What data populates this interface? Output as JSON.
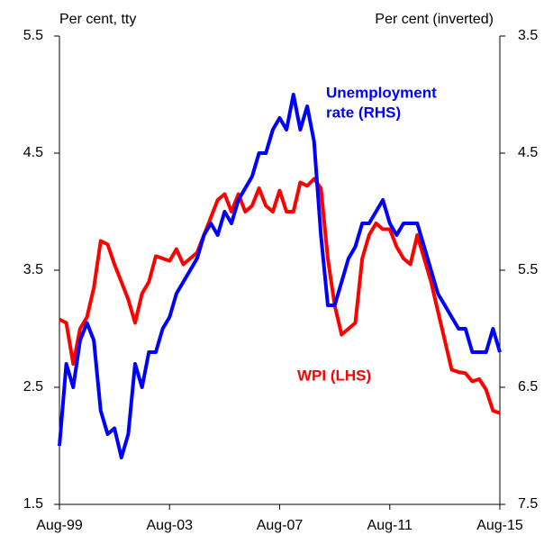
{
  "chart_data": {
    "type": "line",
    "y_label": "Per cent, tty",
    "y2_label": "Per cent (inverted)",
    "x": [
      "Aug-99",
      "Nov-99",
      "Feb-00",
      "May-00",
      "Aug-00",
      "Nov-00",
      "Feb-01",
      "May-01",
      "Aug-01",
      "Nov-01",
      "Feb-02",
      "May-02",
      "Aug-02",
      "Nov-02",
      "Feb-03",
      "May-03",
      "Aug-03",
      "Nov-03",
      "Feb-04",
      "May-04",
      "Aug-04",
      "Nov-04",
      "Feb-05",
      "May-05",
      "Aug-05",
      "Nov-05",
      "Feb-06",
      "May-06",
      "Aug-06",
      "Nov-06",
      "Feb-07",
      "May-07",
      "Aug-07",
      "Nov-07",
      "Feb-08",
      "May-08",
      "Aug-08",
      "Nov-08",
      "Feb-09",
      "May-09",
      "Aug-09",
      "Nov-09",
      "Feb-10",
      "May-10",
      "Aug-10",
      "Nov-10",
      "Feb-11",
      "May-11",
      "Aug-11",
      "Nov-11",
      "Feb-12",
      "May-12",
      "Aug-12",
      "Nov-12",
      "Feb-13",
      "May-13",
      "Aug-13",
      "Nov-13",
      "Feb-14",
      "May-14",
      "Aug-14",
      "Nov-14",
      "Feb-15",
      "May-15",
      "Aug-15"
    ],
    "xticks": [
      "Aug-99",
      "Aug-03",
      "Aug-07",
      "Aug-11",
      "Aug-15"
    ],
    "ylim": [
      1.5,
      5.5
    ],
    "yticks": [
      1.5,
      2.5,
      3.5,
      4.5,
      5.5
    ],
    "y2lim": [
      7.5,
      3.5
    ],
    "y2ticks": [
      3.5,
      4.5,
      5.5,
      6.5,
      7.5
    ],
    "annotations": [
      {
        "lines": [
          "Unemployment",
          "rate (RHS)"
        ],
        "color": "#0000ff"
      },
      {
        "lines": [
          "WPI (LHS)"
        ],
        "color": "#ff0000"
      }
    ],
    "series": [
      {
        "name": "WPI (LHS)",
        "color": "#ff0000",
        "axis": "y",
        "values": [
          3.08,
          3.05,
          2.7,
          3.0,
          3.1,
          3.35,
          3.75,
          3.72,
          3.55,
          3.4,
          3.25,
          3.05,
          3.3,
          3.4,
          3.62,
          3.6,
          3.58,
          3.68,
          3.55,
          3.6,
          3.65,
          3.8,
          3.95,
          4.1,
          4.15,
          4.0,
          4.15,
          4.0,
          4.05,
          4.2,
          4.05,
          4.0,
          4.18,
          4.0,
          4.0,
          4.25,
          4.22,
          4.28,
          4.2,
          3.6,
          3.2,
          2.95,
          3.0,
          3.05,
          3.6,
          3.8,
          3.9,
          3.85,
          3.85,
          3.7,
          3.6,
          3.55,
          3.8,
          3.6,
          3.4,
          3.15,
          2.9,
          2.65,
          2.63,
          2.62,
          2.55,
          2.57,
          2.48,
          2.3,
          2.28
        ]
      },
      {
        "name": "Unemployment rate (RHS)",
        "color": "#0000ff",
        "axis": "y2",
        "values": [
          7.0,
          6.3,
          6.5,
          6.1,
          5.95,
          6.1,
          6.7,
          6.9,
          6.85,
          7.1,
          6.9,
          6.3,
          6.5,
          6.2,
          6.2,
          6.0,
          5.9,
          5.7,
          5.6,
          5.5,
          5.4,
          5.2,
          5.1,
          5.2,
          5.0,
          5.1,
          4.9,
          4.8,
          4.7,
          4.5,
          4.5,
          4.3,
          4.2,
          4.3,
          4.0,
          4.3,
          4.1,
          4.4,
          5.2,
          5.8,
          5.8,
          5.6,
          5.4,
          5.3,
          5.1,
          5.1,
          5.0,
          4.9,
          5.1,
          5.2,
          5.1,
          5.1,
          5.1,
          5.3,
          5.5,
          5.7,
          5.8,
          5.9,
          6.0,
          6.0,
          6.2,
          6.2,
          6.2,
          6.0,
          6.2
        ]
      }
    ]
  }
}
